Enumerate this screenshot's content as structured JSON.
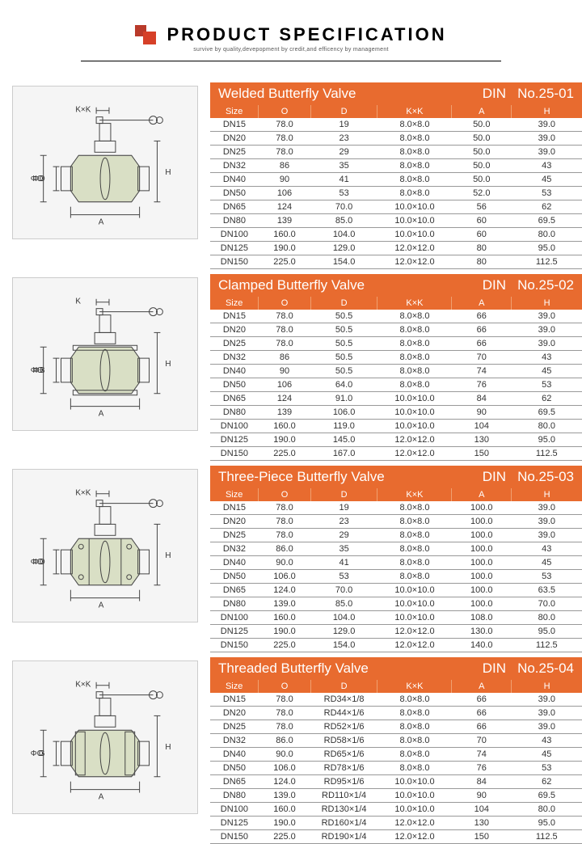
{
  "header": {
    "title": "PRODUCT SPECIFICATION",
    "subtitle": "survive by quality,devepopment by credit,and efficency by management"
  },
  "colors": {
    "accent": "#e86b2f",
    "logo1": "#b93a2a",
    "logo2": "#d64028",
    "grid": "#999999",
    "diagram_bg": "#f5f5f5",
    "diagram_border": "#cccccc",
    "text": "#333333"
  },
  "column_headers": [
    "Size",
    "O",
    "D",
    "K×K",
    "A",
    "H"
  ],
  "sections": [
    {
      "title": "Welded Butterfly Valve",
      "din": "DIN",
      "num": "No.25-01",
      "diagram_labels": {
        "top": "K×K",
        "left1": "ΦO",
        "left2": "ΦD",
        "bottom": "A",
        "right": "H"
      },
      "rows": [
        [
          "DN15",
          "78.0",
          "19",
          "8.0×8.0",
          "50.0",
          "39.0"
        ],
        [
          "DN20",
          "78.0",
          "23",
          "8.0×8.0",
          "50.0",
          "39.0"
        ],
        [
          "DN25",
          "78.0",
          "29",
          "8.0×8.0",
          "50.0",
          "39.0"
        ],
        [
          "DN32",
          "86",
          "35",
          "8.0×8.0",
          "50.0",
          "43"
        ],
        [
          "DN40",
          "90",
          "41",
          "8.0×8.0",
          "50.0",
          "45"
        ],
        [
          "DN50",
          "106",
          "53",
          "8.0×8.0",
          "52.0",
          "53"
        ],
        [
          "DN65",
          "124",
          "70.0",
          "10.0×10.0",
          "56",
          "62"
        ],
        [
          "DN80",
          "139",
          "85.0",
          "10.0×10.0",
          "60",
          "69.5"
        ],
        [
          "DN100",
          "160.0",
          "104.0",
          "10.0×10.0",
          "60",
          "80.0"
        ],
        [
          "DN125",
          "190.0",
          "129.0",
          "12.0×12.0",
          "80",
          "95.0"
        ],
        [
          "DN150",
          "225.0",
          "154.0",
          "12.0×12.0",
          "80",
          "112.5"
        ]
      ]
    },
    {
      "title": "Clamped Butterfly Valve",
      "din": "DIN",
      "num": "No.25-02",
      "diagram_labels": {
        "top": "K",
        "left1": "ΦO",
        "left2": "ΦB",
        "bottom": "A",
        "right": "H"
      },
      "rows": [
        [
          "DN15",
          "78.0",
          "50.5",
          "8.0×8.0",
          "66",
          "39.0"
        ],
        [
          "DN20",
          "78.0",
          "50.5",
          "8.0×8.0",
          "66",
          "39.0"
        ],
        [
          "DN25",
          "78.0",
          "50.5",
          "8.0×8.0",
          "66",
          "39.0"
        ],
        [
          "DN32",
          "86",
          "50.5",
          "8.0×8.0",
          "70",
          "43"
        ],
        [
          "DN40",
          "90",
          "50.5",
          "8.0×8.0",
          "74",
          "45"
        ],
        [
          "DN50",
          "106",
          "64.0",
          "8.0×8.0",
          "76",
          "53"
        ],
        [
          "DN65",
          "124",
          "91.0",
          "10.0×10.0",
          "84",
          "62"
        ],
        [
          "DN80",
          "139",
          "106.0",
          "10.0×10.0",
          "90",
          "69.5"
        ],
        [
          "DN100",
          "160.0",
          "119.0",
          "10.0×10.0",
          "104",
          "80.0"
        ],
        [
          "DN125",
          "190.0",
          "145.0",
          "12.0×12.0",
          "130",
          "95.0"
        ],
        [
          "DN150",
          "225.0",
          "167.0",
          "12.0×12.0",
          "150",
          "112.5"
        ]
      ]
    },
    {
      "title": "Three-Piece Butterfly Valve",
      "din": "DIN",
      "num": "No.25-03",
      "diagram_labels": {
        "top": "K×K",
        "left1": "ΦO",
        "left2": "ΦD",
        "bottom": "A",
        "right": "H"
      },
      "rows": [
        [
          "DN15",
          "78.0",
          "19",
          "8.0×8.0",
          "100.0",
          "39.0"
        ],
        [
          "DN20",
          "78.0",
          "23",
          "8.0×8.0",
          "100.0",
          "39.0"
        ],
        [
          "DN25",
          "78.0",
          "29",
          "8.0×8.0",
          "100.0",
          "39.0"
        ],
        [
          "DN32",
          "86.0",
          "35",
          "8.0×8.0",
          "100.0",
          "43"
        ],
        [
          "DN40",
          "90.0",
          "41",
          "8.0×8.0",
          "100.0",
          "45"
        ],
        [
          "DN50",
          "106.0",
          "53",
          "8.0×8.0",
          "100.0",
          "53"
        ],
        [
          "DN65",
          "124.0",
          "70.0",
          "10.0×10.0",
          "100.0",
          "63.5"
        ],
        [
          "DN80",
          "139.0",
          "85.0",
          "10.0×10.0",
          "100.0",
          "70.0"
        ],
        [
          "DN100",
          "160.0",
          "104.0",
          "10.0×10.0",
          "108.0",
          "80.0"
        ],
        [
          "DN125",
          "190.0",
          "129.0",
          "12.0×12.0",
          "130.0",
          "95.0"
        ],
        [
          "DN150",
          "225.0",
          "154.0",
          "12.0×12.0",
          "140.0",
          "112.5"
        ]
      ]
    },
    {
      "title": "Threaded Butterfly Valve",
      "din": "DIN",
      "num": "No.25-04",
      "diagram_labels": {
        "top": "K×K",
        "left1": "ΦO",
        "left2": "G",
        "bottom": "A",
        "right": "H"
      },
      "rows": [
        [
          "DN15",
          "78.0",
          "RD34×1/8",
          "8.0×8.0",
          "66",
          "39.0"
        ],
        [
          "DN20",
          "78.0",
          "RD44×1/6",
          "8.0×8.0",
          "66",
          "39.0"
        ],
        [
          "DN25",
          "78.0",
          "RD52×1/6",
          "8.0×8.0",
          "66",
          "39.0"
        ],
        [
          "DN32",
          "86.0",
          "RD58×1/6",
          "8.0×8.0",
          "70",
          "43"
        ],
        [
          "DN40",
          "90.0",
          "RD65×1/6",
          "8.0×8.0",
          "74",
          "45"
        ],
        [
          "DN50",
          "106.0",
          "RD78×1/6",
          "8.0×8.0",
          "76",
          "53"
        ],
        [
          "DN65",
          "124.0",
          "RD95×1/6",
          "10.0×10.0",
          "84",
          "62"
        ],
        [
          "DN80",
          "139.0",
          "RD110×1/4",
          "10.0×10.0",
          "90",
          "69.5"
        ],
        [
          "DN100",
          "160.0",
          "RD130×1/4",
          "10.0×10.0",
          "104",
          "80.0"
        ],
        [
          "DN125",
          "190.0",
          "RD160×1/4",
          "12.0×12.0",
          "130",
          "95.0"
        ],
        [
          "DN150",
          "225.0",
          "RD190×1/4",
          "12.0×12.0",
          "150",
          "112.5"
        ]
      ]
    }
  ]
}
